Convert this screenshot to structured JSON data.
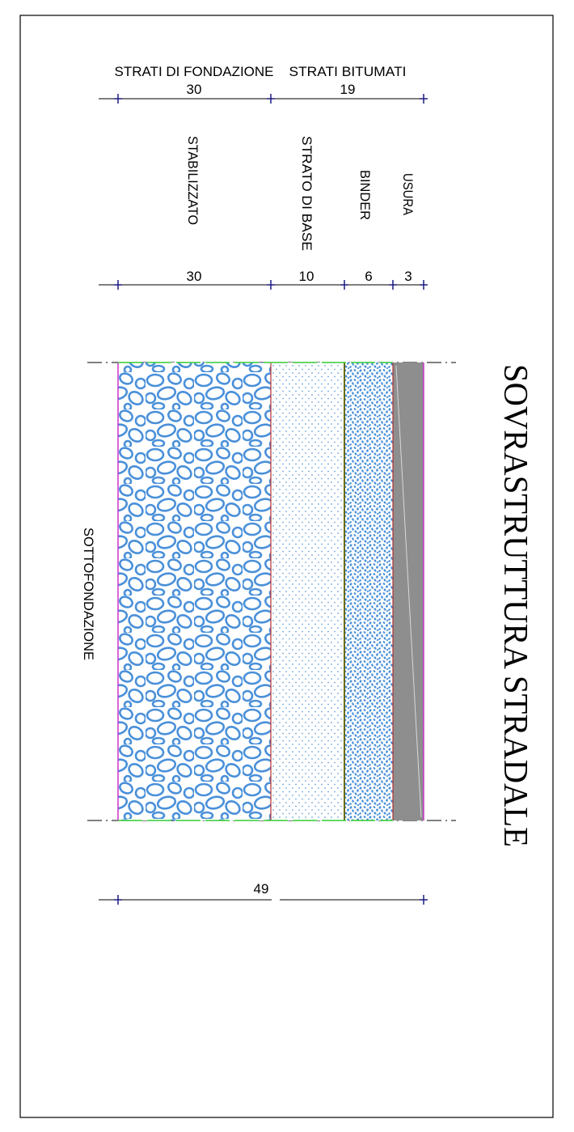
{
  "title": "SOVRASTRUTTURA STRADALE",
  "groups": [
    {
      "label": "STRATI DI FONDAZIONE",
      "thickness": "30"
    },
    {
      "label": "STRATI BITUMATI",
      "thickness": "19"
    }
  ],
  "layers": [
    {
      "name": "STABILIZZATO",
      "thickness": "30",
      "pattern": "gravel-pattern"
    },
    {
      "name": "STRATO DI BASE",
      "thickness": "10",
      "pattern": "fine-dot-pattern"
    },
    {
      "name": "BINDER",
      "thickness": "6",
      "pattern": "dense-dot-pattern"
    },
    {
      "name": "USURA",
      "thickness": "3",
      "pattern": "solid-grey"
    }
  ],
  "subgrade_label": "SOTTOFONDAZIONE",
  "total_thickness": "49",
  "colors": {
    "hatch_blue": "#4a90d9",
    "usura_grey": "#8e8e8e",
    "boundary_magenta": "#cc33cc",
    "edge_green": "#33cc33",
    "dimension_blue": "#1a1a80"
  }
}
